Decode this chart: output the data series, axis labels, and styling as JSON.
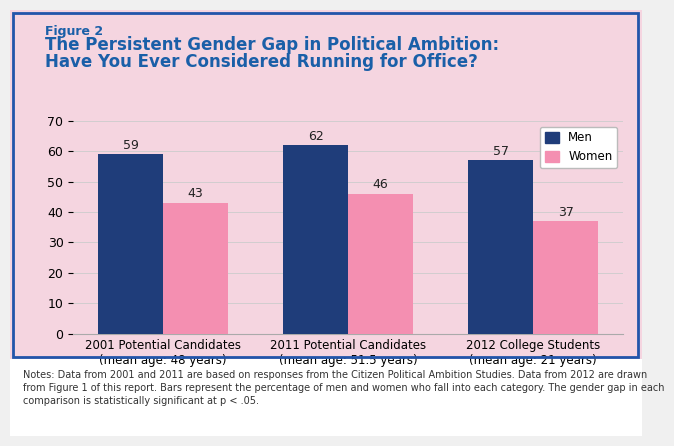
{
  "figure_label": "Figure 2",
  "title_line1": "The Persistent Gender Gap in Political Ambition:",
  "title_line2": "Have You Ever Considered Running for Office?",
  "categories": [
    "2001 Potential Candidates\n(mean age: 48 years)",
    "2011 Potential Candidates\n(mean age: 51.5 years)",
    "2012 College Students\n(mean age: 21 years)"
  ],
  "men_values": [
    59,
    62,
    57
  ],
  "women_values": [
    43,
    46,
    37
  ],
  "men_color": "#1f3d7a",
  "women_color": "#f48fb1",
  "ylim": [
    0,
    70
  ],
  "yticks": [
    0,
    10,
    20,
    30,
    40,
    50,
    60,
    70
  ],
  "bar_width": 0.35,
  "legend_labels": [
    "Men",
    "Women"
  ],
  "notes": "Notes: Data from 2001 and 2011 are based on responses from the Citizen Political Ambition Studies. Data from 2012 are drawn\nfrom Figure 1 of this report. Bars represent the percentage of men and women who fall into each category. The gender gap in each\ncomparison is statistically significant at p < .05.",
  "background_outer": "#f5d5e0",
  "background_chart": "#f5d5e0",
  "border_color": "#2255aa",
  "title_color": "#1a5fa8",
  "figure_label_color": "#1a5fa8",
  "notes_color": "#333333",
  "value_label_fontsize": 9,
  "axis_label_fontsize": 8.5,
  "title_fontsize": 12,
  "figure_label_fontsize": 9
}
